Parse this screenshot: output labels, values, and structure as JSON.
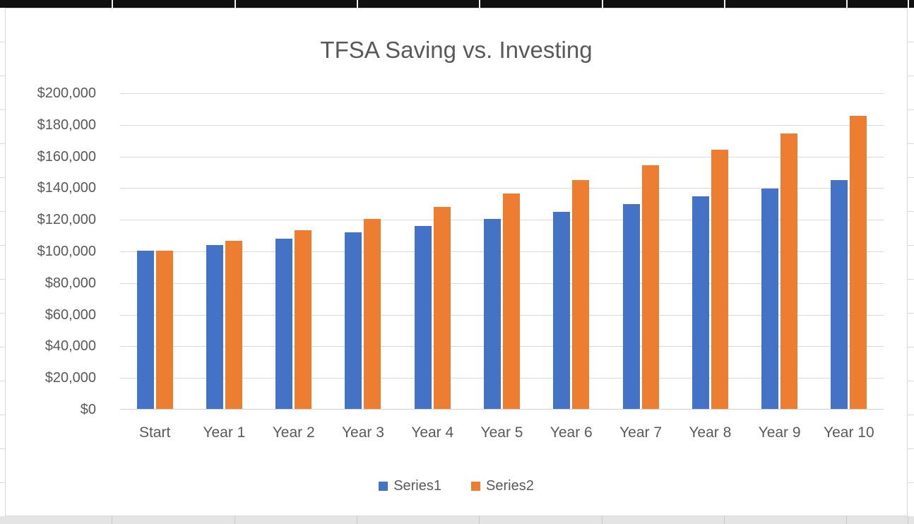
{
  "chart_data": {
    "type": "bar",
    "title": "TFSA Saving vs. Investing",
    "categories": [
      "Start",
      "Year 1",
      "Year 2",
      "Year 3",
      "Year 4",
      "Year 5",
      "Year 6",
      "Year 7",
      "Year 8",
      "Year 9",
      "Year 10"
    ],
    "series": [
      {
        "name": "Series1",
        "color": "#4472C4",
        "values": [
          100000,
          103750,
          107650,
          111700,
          115850,
          120200,
          124700,
          129400,
          134250,
          139300,
          144500
        ]
      },
      {
        "name": "Series2",
        "color": "#ED7D31",
        "values": [
          100000,
          106350,
          113100,
          120300,
          127900,
          136050,
          144700,
          153850,
          163650,
          174050,
          185100
        ]
      }
    ],
    "xlabel": "",
    "ylabel": "",
    "ylim": [
      0,
      200000
    ],
    "y_ticks": [
      {
        "value": 0,
        "label": "$0"
      },
      {
        "value": 20000,
        "label": "$20,000"
      },
      {
        "value": 40000,
        "label": "$40,000"
      },
      {
        "value": 60000,
        "label": "$60,000"
      },
      {
        "value": 80000,
        "label": "$80,000"
      },
      {
        "value": 100000,
        "label": "$100,000"
      },
      {
        "value": 120000,
        "label": "$120,000"
      },
      {
        "value": 140000,
        "label": "$140,000"
      },
      {
        "value": 160000,
        "label": "$160,000"
      },
      {
        "value": 180000,
        "label": "$180,000"
      },
      {
        "value": 200000,
        "label": "$200,000"
      }
    ],
    "grid": "horizontal",
    "legend_position": "bottom",
    "colors": {
      "text": "#595959",
      "gridline": "#d9d9d9",
      "chart_background": "#ffffff",
      "spreadsheet_top_row": "#101010"
    }
  }
}
